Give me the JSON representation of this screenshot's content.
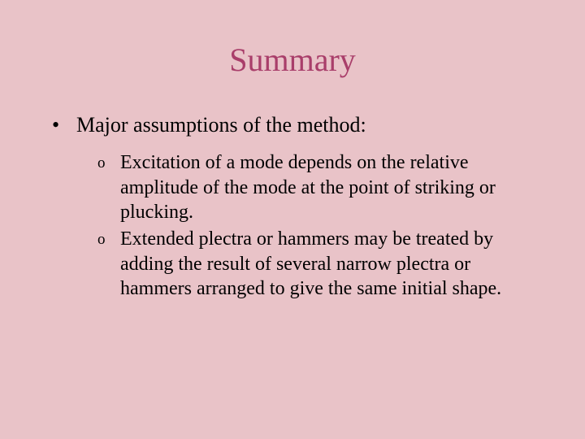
{
  "slide": {
    "title": "Summary",
    "title_color": "#a93e6a",
    "title_fontsize": 40,
    "background_color": "#e9c3c8",
    "text_color": "#000000",
    "main_bullet": {
      "marker": "•",
      "text": "Major assumptions of the method:",
      "fontsize": 26
    },
    "sub_bullets": [
      {
        "marker": "o",
        "text": "Excitation of a mode depends on the relative amplitude of the mode at the point of striking or plucking."
      },
      {
        "marker": "o",
        "text": "Extended plectra or hammers may be treated by adding the result of several narrow plectra or hammers arranged to give the same initial shape."
      }
    ],
    "sub_bullet_fontsize": 24,
    "sub_marker_fontsize": 19
  }
}
